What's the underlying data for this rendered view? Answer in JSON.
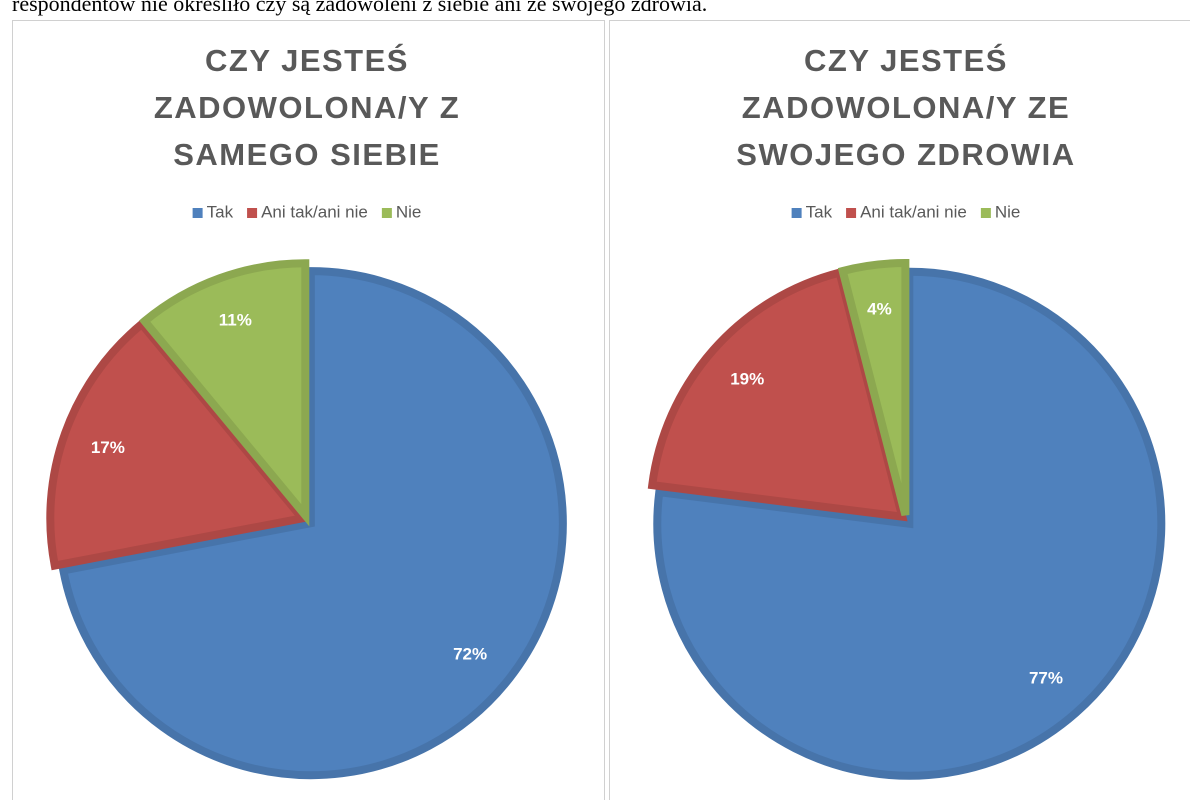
{
  "text": "respondentów nie określiło czy są zadowoleni z siebie ani ze swojego zdrowia.",
  "chart_data": [
    {
      "type": "pie",
      "title": [
        "CZY JESTEŚ",
        "ZADOWOLONA/Y Z",
        "SAMEGO SIEBIE"
      ],
      "categories": [
        "Tak",
        "Ani tak/ani nie",
        "Nie"
      ],
      "values": [
        72,
        17,
        11
      ],
      "value_labels": [
        "72%",
        "17%",
        "11%"
      ],
      "colors": [
        "#4f81bd",
        "#c0504d",
        "#9bbb59"
      ],
      "legend": "top"
    },
    {
      "type": "pie",
      "title": [
        "CZY JESTEŚ",
        "ZADOWOLONA/Y ZE",
        "SWOJEGO ZDROWIA"
      ],
      "categories": [
        "Tak",
        "Ani tak/ani nie",
        "Nie"
      ],
      "values": [
        77,
        19,
        4
      ],
      "value_labels": [
        "77%",
        "19%",
        "4%"
      ],
      "colors": [
        "#4f81bd",
        "#c0504d",
        "#9bbb59"
      ],
      "legend": "top"
    }
  ]
}
